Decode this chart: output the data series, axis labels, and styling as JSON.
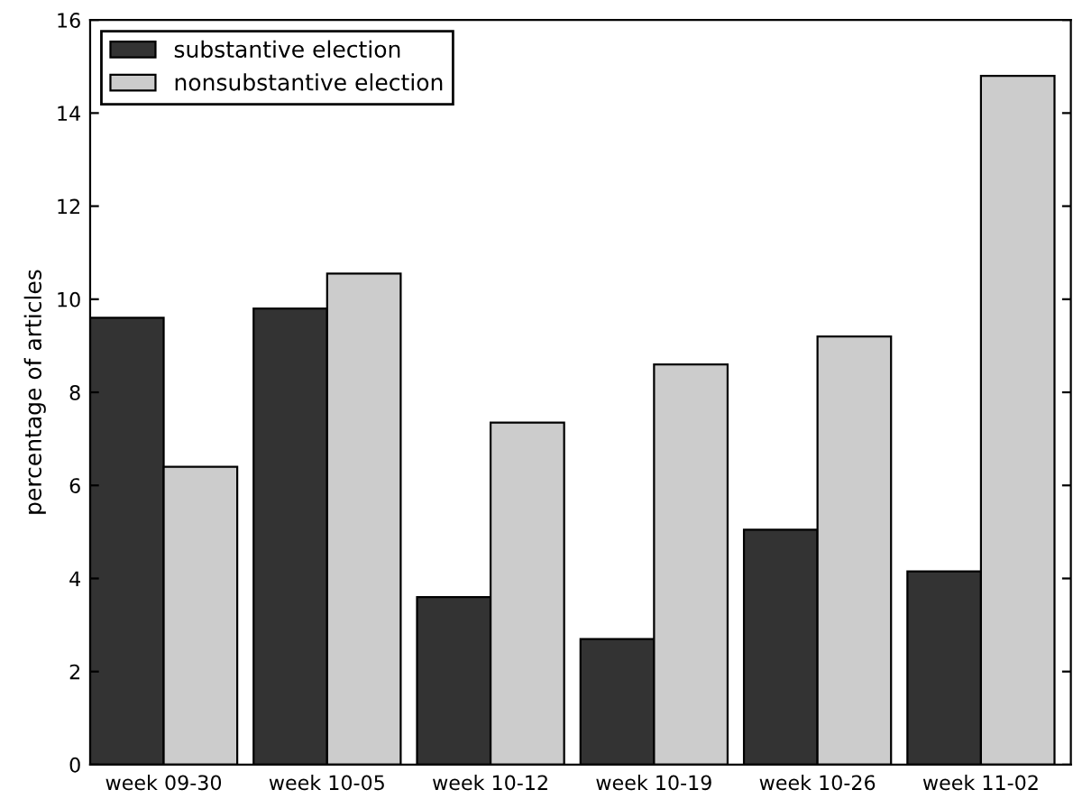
{
  "chart_data": {
    "type": "bar",
    "ylabel": "percentage of articles",
    "categories": [
      "week 09-30",
      "week 10-05",
      "week 10-12",
      "week 10-19",
      "week 10-26",
      "week 11-02"
    ],
    "series": [
      {
        "name": "substantive election",
        "color": "#333333",
        "values": [
          9.6,
          9.8,
          3.6,
          2.7,
          5.05,
          4.15
        ]
      },
      {
        "name": "nonsubstantive election",
        "color": "#cccccc",
        "values": [
          6.4,
          10.55,
          7.35,
          8.6,
          9.2,
          14.8
        ]
      }
    ],
    "ylim": [
      0,
      16
    ],
    "yticks": [
      0,
      2,
      4,
      6,
      8,
      10,
      12,
      14,
      16
    ],
    "grid": false,
    "legend": "top left"
  }
}
